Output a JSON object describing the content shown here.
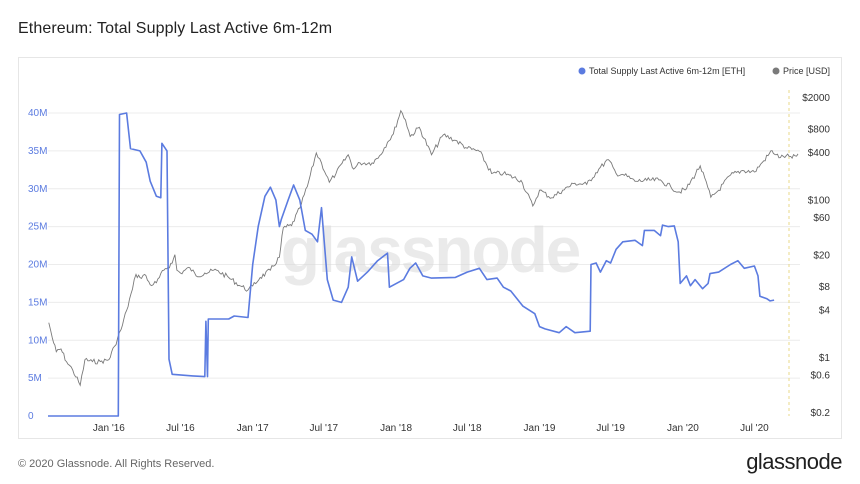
{
  "page": {
    "title": "Ethereum: Total Supply Last Active 6m-12m",
    "footer": "© 2020 Glassnode. All Rights Reserved.",
    "logo": "glassnode",
    "watermark": "glassnode"
  },
  "chart_data": {
    "type": "line",
    "title": "Ethereum: Total Supply Last Active 6m-12m",
    "legend": {
      "placement": "top-right",
      "entries": [
        {
          "label": "Total Supply Last Active 6m-12m [ETH]",
          "color": "#5b7be0"
        },
        {
          "label": "Price [USD]",
          "color": "#7a7a7a"
        }
      ]
    },
    "x_ticks": [
      "Jan '16",
      "Jul '16",
      "Jan '17",
      "Jul '17",
      "Jan '18",
      "Jul '18",
      "Jan '19",
      "Jul '19",
      "Jan '20",
      "Jul '20"
    ],
    "left_axis": {
      "ticks": [
        {
          "v": 0,
          "label": "0"
        },
        {
          "v": 5,
          "label": "5M"
        },
        {
          "v": 10,
          "label": "10M"
        },
        {
          "v": 15,
          "label": "15M"
        },
        {
          "v": 20,
          "label": "20M"
        },
        {
          "v": 25,
          "label": "25M"
        },
        {
          "v": 30,
          "label": "30M"
        },
        {
          "v": 35,
          "label": "35M"
        },
        {
          "v": 40,
          "label": "40M"
        }
      ],
      "range": [
        0,
        40
      ]
    },
    "right_axis": {
      "scale": "log",
      "ticks": [
        {
          "v": 0.2,
          "label": "$0.2"
        },
        {
          "v": 0.6,
          "label": "$0.6"
        },
        {
          "v": 1,
          "label": "$1"
        },
        {
          "v": 4,
          "label": "$4"
        },
        {
          "v": 8,
          "label": "$8"
        },
        {
          "v": 20,
          "label": "$20"
        },
        {
          "v": 60,
          "label": "$60"
        },
        {
          "v": 100,
          "label": "$100"
        },
        {
          "v": 400,
          "label": "$400"
        },
        {
          "v": 800,
          "label": "$800"
        },
        {
          "v": 2000,
          "label": "$2000"
        }
      ]
    },
    "grid": true,
    "series": [
      {
        "name": "Total Supply Last Active 6m-12m [ETH]",
        "unit": "M ETH",
        "points": [
          [
            "2015-07-30",
            0
          ],
          [
            "2016-01-25",
            0
          ],
          [
            "2016-01-28",
            39.8
          ],
          [
            "2016-02-15",
            40.0
          ],
          [
            "2016-02-25",
            35.3
          ],
          [
            "2016-03-20",
            35.0
          ],
          [
            "2016-04-05",
            33.5
          ],
          [
            "2016-04-15",
            31.0
          ],
          [
            "2016-05-01",
            29.0
          ],
          [
            "2016-05-12",
            28.8
          ],
          [
            "2016-05-15",
            36.0
          ],
          [
            "2016-05-28",
            35.0
          ],
          [
            "2016-06-02",
            7.5
          ],
          [
            "2016-06-10",
            5.5
          ],
          [
            "2016-08-01",
            5.3
          ],
          [
            "2016-09-01",
            5.2
          ],
          [
            "2016-09-04",
            12.5
          ],
          [
            "2016-09-08",
            5.2
          ],
          [
            "2016-09-10",
            12.8
          ],
          [
            "2016-11-01",
            12.8
          ],
          [
            "2016-11-15",
            13.2
          ],
          [
            "2016-12-20",
            13.0
          ],
          [
            "2017-01-01",
            20.0
          ],
          [
            "2017-01-15",
            25.0
          ],
          [
            "2017-02-01",
            29.0
          ],
          [
            "2017-02-15",
            30.2
          ],
          [
            "2017-03-01",
            28.5
          ],
          [
            "2017-03-10",
            25.0
          ],
          [
            "2017-03-15",
            26.0
          ],
          [
            "2017-04-01",
            28.5
          ],
          [
            "2017-04-15",
            30.5
          ],
          [
            "2017-05-01",
            28.5
          ],
          [
            "2017-05-15",
            24.5
          ],
          [
            "2017-06-01",
            24.0
          ],
          [
            "2017-06-15",
            23.0
          ],
          [
            "2017-06-25",
            27.5
          ],
          [
            "2017-07-10",
            18.0
          ],
          [
            "2017-07-25",
            15.3
          ],
          [
            "2017-08-15",
            15.0
          ],
          [
            "2017-09-01",
            17.0
          ],
          [
            "2017-09-10",
            21.0
          ],
          [
            "2017-09-25",
            17.8
          ],
          [
            "2017-10-20",
            19.0
          ],
          [
            "2017-11-15",
            20.5
          ],
          [
            "2017-12-10",
            21.5
          ],
          [
            "2017-12-15",
            17.0
          ],
          [
            "2018-01-20",
            18.0
          ],
          [
            "2018-02-05",
            19.5
          ],
          [
            "2018-02-20",
            20.2
          ],
          [
            "2018-03-10",
            18.5
          ],
          [
            "2018-04-01",
            18.2
          ],
          [
            "2018-06-01",
            18.3
          ],
          [
            "2018-07-01",
            19.0
          ],
          [
            "2018-08-01",
            19.5
          ],
          [
            "2018-08-20",
            18.0
          ],
          [
            "2018-09-15",
            18.2
          ],
          [
            "2018-10-01",
            17.0
          ],
          [
            "2018-10-20",
            16.5
          ],
          [
            "2018-11-20",
            14.5
          ],
          [
            "2018-12-20",
            13.5
          ],
          [
            "2019-01-01",
            11.8
          ],
          [
            "2019-01-15",
            11.5
          ],
          [
            "2019-02-20",
            11.0
          ],
          [
            "2019-03-10",
            11.8
          ],
          [
            "2019-04-01",
            11.0
          ],
          [
            "2019-05-10",
            11.2
          ],
          [
            "2019-05-12",
            20.0
          ],
          [
            "2019-05-25",
            20.2
          ],
          [
            "2019-06-05",
            19.0
          ],
          [
            "2019-06-20",
            20.5
          ],
          [
            "2019-07-01",
            20.2
          ],
          [
            "2019-07-15",
            22.0
          ],
          [
            "2019-08-01",
            23.0
          ],
          [
            "2019-09-01",
            23.2
          ],
          [
            "2019-09-20",
            22.5
          ],
          [
            "2019-09-25",
            24.5
          ],
          [
            "2019-10-20",
            24.5
          ],
          [
            "2019-11-05",
            23.8
          ],
          [
            "2019-11-10",
            25.2
          ],
          [
            "2019-11-25",
            25.0
          ],
          [
            "2019-12-10",
            25.1
          ],
          [
            "2019-12-20",
            23.0
          ],
          [
            "2019-12-25",
            17.5
          ],
          [
            "2020-01-10",
            18.5
          ],
          [
            "2020-01-20",
            17.2
          ],
          [
            "2020-02-01",
            18.0
          ],
          [
            "2020-02-20",
            16.8
          ],
          [
            "2020-03-05",
            17.5
          ],
          [
            "2020-03-10",
            18.8
          ],
          [
            "2020-04-01",
            19.0
          ],
          [
            "2020-05-01",
            20.0
          ],
          [
            "2020-05-20",
            20.5
          ],
          [
            "2020-06-05",
            19.5
          ],
          [
            "2020-07-01",
            19.8
          ],
          [
            "2020-07-10",
            18.5
          ],
          [
            "2020-07-15",
            15.8
          ],
          [
            "2020-08-01",
            15.5
          ],
          [
            "2020-08-10",
            15.2
          ],
          [
            "2020-08-20",
            15.3
          ]
        ]
      },
      {
        "name": "Price [USD]",
        "unit": "USD",
        "points": [
          [
            "2015-08-01",
            2.8
          ],
          [
            "2015-08-10",
            1.8
          ],
          [
            "2015-08-20",
            1.2
          ],
          [
            "2015-09-01",
            1.3
          ],
          [
            "2015-09-15",
            0.9
          ],
          [
            "2015-10-01",
            0.7
          ],
          [
            "2015-10-20",
            0.45
          ],
          [
            "2015-11-01",
            0.95
          ],
          [
            "2015-11-20",
            0.9
          ],
          [
            "2015-12-10",
            0.9
          ],
          [
            "2016-01-01",
            0.95
          ],
          [
            "2016-01-15",
            1.4
          ],
          [
            "2016-02-01",
            2.3
          ],
          [
            "2016-02-15",
            4.0
          ],
          [
            "2016-03-01",
            7.5
          ],
          [
            "2016-03-10",
            11.5
          ],
          [
            "2016-03-20",
            10.5
          ],
          [
            "2016-04-01",
            11.5
          ],
          [
            "2016-04-15",
            8.5
          ],
          [
            "2016-05-01",
            9.0
          ],
          [
            "2016-05-20",
            13.0
          ],
          [
            "2016-06-10",
            16.0
          ],
          [
            "2016-06-17",
            20.5
          ],
          [
            "2016-06-22",
            13.0
          ],
          [
            "2016-07-01",
            12.0
          ],
          [
            "2016-07-25",
            14.0
          ],
          [
            "2016-08-10",
            11.0
          ],
          [
            "2016-09-01",
            12.0
          ],
          [
            "2016-10-01",
            13.0
          ],
          [
            "2016-11-01",
            10.5
          ],
          [
            "2016-12-01",
            8.2
          ],
          [
            "2016-12-20",
            7.3
          ],
          [
            "2017-01-01",
            8.2
          ],
          [
            "2017-01-20",
            10.5
          ],
          [
            "2017-02-15",
            13.0
          ],
          [
            "2017-03-10",
            19.0
          ],
          [
            "2017-03-20",
            45.0
          ],
          [
            "2017-04-10",
            48.0
          ],
          [
            "2017-05-01",
            80.0
          ],
          [
            "2017-05-20",
            150.0
          ],
          [
            "2017-06-12",
            400.0
          ],
          [
            "2017-06-25",
            300.0
          ],
          [
            "2017-07-15",
            170.0
          ],
          [
            "2017-08-01",
            220.0
          ],
          [
            "2017-09-01",
            380.0
          ],
          [
            "2017-09-15",
            250.0
          ],
          [
            "2017-10-01",
            300.0
          ],
          [
            "2017-11-01",
            300.0
          ],
          [
            "2017-11-20",
            370.0
          ],
          [
            "2017-12-10",
            550.0
          ],
          [
            "2017-12-25",
            700.0
          ],
          [
            "2018-01-13",
            1380.0
          ],
          [
            "2018-01-25",
            1050.0
          ],
          [
            "2018-02-06",
            650.0
          ],
          [
            "2018-03-01",
            850.0
          ],
          [
            "2018-04-01",
            380.0
          ],
          [
            "2018-05-01",
            680.0
          ],
          [
            "2018-06-01",
            580.0
          ],
          [
            "2018-07-01",
            460.0
          ],
          [
            "2018-08-01",
            420.0
          ],
          [
            "2018-09-01",
            220.0
          ],
          [
            "2018-10-01",
            220.0
          ],
          [
            "2018-11-15",
            180.0
          ],
          [
            "2018-12-15",
            85.0
          ],
          [
            "2019-01-01",
            135.0
          ],
          [
            "2019-02-01",
            108.0
          ],
          [
            "2019-03-01",
            135.0
          ],
          [
            "2019-04-01",
            165.0
          ],
          [
            "2019-05-01",
            160.0
          ],
          [
            "2019-06-01",
            250.0
          ],
          [
            "2019-06-25",
            330.0
          ],
          [
            "2019-07-15",
            220.0
          ],
          [
            "2019-08-01",
            215.0
          ],
          [
            "2019-09-01",
            175.0
          ],
          [
            "2019-10-01",
            180.0
          ],
          [
            "2019-11-01",
            182.0
          ],
          [
            "2019-12-01",
            150.0
          ],
          [
            "2019-12-20",
            128.0
          ],
          [
            "2020-01-10",
            140.0
          ],
          [
            "2020-02-14",
            275.0
          ],
          [
            "2020-03-12",
            110.0
          ],
          [
            "2020-04-01",
            135.0
          ],
          [
            "2020-05-01",
            210.0
          ],
          [
            "2020-06-01",
            240.0
          ],
          [
            "2020-07-01",
            230.0
          ],
          [
            "2020-07-25",
            320.0
          ],
          [
            "2020-08-15",
            430.0
          ],
          [
            "2020-08-25",
            380.0
          ],
          [
            "2020-09-05",
            350.0
          ],
          [
            "2020-09-20",
            370.0
          ],
          [
            "2020-10-05",
            345.0
          ],
          [
            "2020-10-20",
            390.0
          ]
        ]
      }
    ]
  }
}
